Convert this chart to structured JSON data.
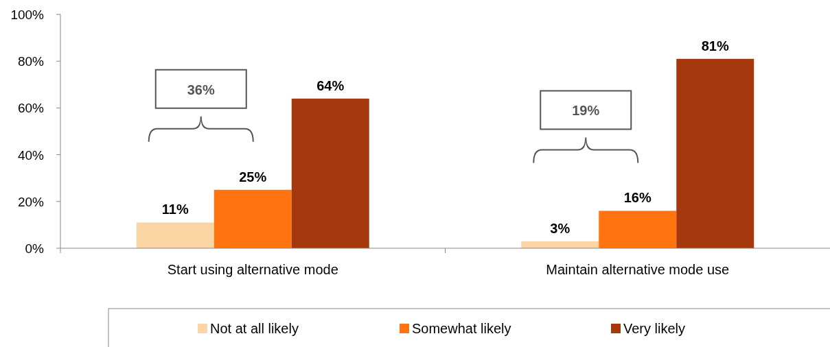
{
  "chart_data": {
    "type": "bar",
    "categories": [
      "Start using alternative mode",
      "Maintain alternative mode use"
    ],
    "series": [
      {
        "name": "Not at all likely",
        "color": "#fcd5a5",
        "values": [
          11,
          3
        ]
      },
      {
        "name": "Somewhat likely",
        "color": "#ff7410",
        "values": [
          25,
          16
        ]
      },
      {
        "name": "Very likely",
        "color": "#a5380c",
        "values": [
          64,
          81
        ]
      }
    ],
    "ylim": [
      0,
      100
    ],
    "yticks": [
      {
        "value": 0,
        "label": "0%"
      },
      {
        "value": 20,
        "label": "20%"
      },
      {
        "value": 40,
        "label": "40%"
      },
      {
        "value": 60,
        "label": "60%"
      },
      {
        "value": 80,
        "label": "80%"
      },
      {
        "value": 100,
        "label": "100%"
      }
    ],
    "value_labels": [
      [
        "11%",
        "3%"
      ],
      [
        "25%",
        "16%"
      ],
      [
        "64%",
        "81%"
      ]
    ],
    "annotations": [
      "36%",
      "19%"
    ],
    "grid": false,
    "legend": "bottom"
  }
}
